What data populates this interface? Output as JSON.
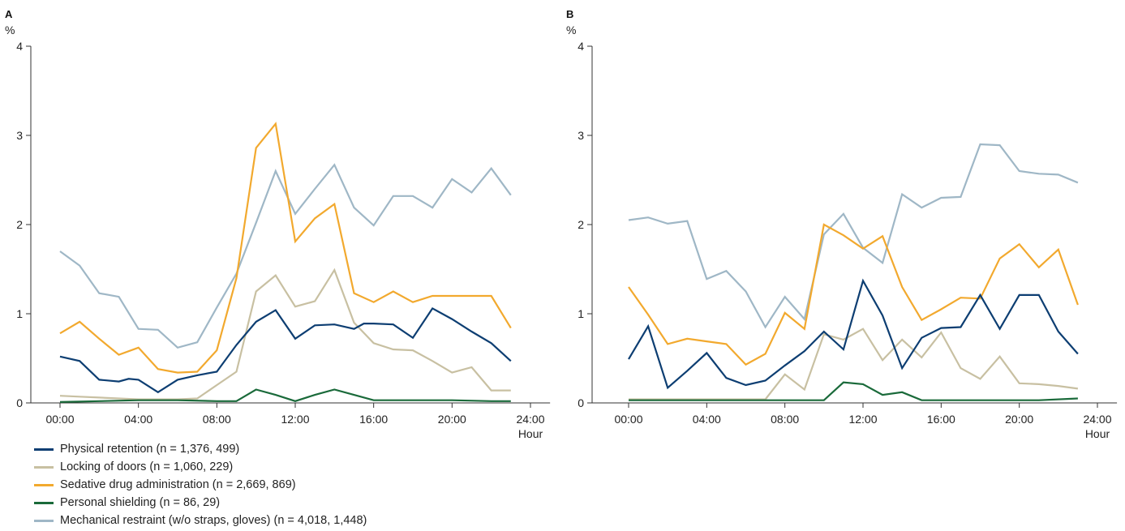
{
  "chart_data": [
    {
      "type": "line",
      "panel_label": "A",
      "ylabel": "%",
      "xlabel": "Hour",
      "ylim": [
        0,
        4
      ],
      "xlim": [
        -2,
        25
      ],
      "y_ticks": [
        "0",
        "1",
        "2",
        "3",
        "4"
      ],
      "x_ticks": [
        "00:00",
        "04:00",
        "08:00",
        "12:00",
        "16:00",
        "20:00",
        "24:00"
      ],
      "series": [
        {
          "name": "Mechanical restraint (w/o straps, gloves) (n = 4,018, 1,448)",
          "color": "#9fb7c6",
          "points": [
            [
              0,
              1.7
            ],
            [
              1,
              1.54
            ],
            [
              2,
              1.23
            ],
            [
              3,
              1.19
            ],
            [
              4,
              0.83
            ],
            [
              5,
              0.82
            ],
            [
              6,
              0.62
            ],
            [
              7,
              0.68
            ],
            [
              8,
              1.07
            ],
            [
              9,
              1.45
            ],
            [
              10,
              2.02
            ],
            [
              11,
              2.6
            ],
            [
              12,
              2.12
            ],
            [
              13,
              2.4
            ],
            [
              14,
              2.67
            ],
            [
              15,
              2.19
            ],
            [
              16,
              1.99
            ],
            [
              17,
              2.32
            ],
            [
              18,
              2.32
            ],
            [
              19,
              2.19
            ],
            [
              20,
              2.51
            ],
            [
              21,
              2.36
            ],
            [
              22,
              2.63
            ],
            [
              23,
              2.33
            ]
          ]
        },
        {
          "name": "Locking of doors (n = 1,060, 229)",
          "color": "#c8c0a2",
          "points": [
            [
              0,
              0.08
            ],
            [
              1,
              0.07
            ],
            [
              2,
              0.06
            ],
            [
              3,
              0.05
            ],
            [
              4,
              0.04
            ],
            [
              5,
              0.04
            ],
            [
              6,
              0.04
            ],
            [
              7,
              0.05
            ],
            [
              8,
              0.2
            ],
            [
              9,
              0.35
            ],
            [
              10,
              1.25
            ],
            [
              11,
              1.43
            ],
            [
              12,
              1.08
            ],
            [
              13,
              1.14
            ],
            [
              14,
              1.49
            ],
            [
              15,
              0.9
            ],
            [
              16,
              0.67
            ],
            [
              17,
              0.6
            ],
            [
              18,
              0.59
            ],
            [
              19,
              0.47
            ],
            [
              20,
              0.34
            ],
            [
              21,
              0.4
            ],
            [
              22,
              0.14
            ],
            [
              23,
              0.14
            ]
          ]
        },
        {
          "name": "Sedative drug administration (n = 2,669, 869)",
          "color": "#f2a92e",
          "points": [
            [
              0,
              0.78
            ],
            [
              1,
              0.91
            ],
            [
              2,
              0.72
            ],
            [
              3,
              0.54
            ],
            [
              4,
              0.62
            ],
            [
              5,
              0.38
            ],
            [
              6,
              0.34
            ],
            [
              7,
              0.35
            ],
            [
              8,
              0.59
            ],
            [
              9,
              1.4
            ],
            [
              10,
              2.86
            ],
            [
              11,
              3.13
            ],
            [
              12,
              1.81
            ],
            [
              13,
              2.07
            ],
            [
              14,
              2.23
            ],
            [
              15,
              1.23
            ],
            [
              16,
              1.13
            ],
            [
              17,
              1.25
            ],
            [
              18,
              1.13
            ],
            [
              19,
              1.2
            ],
            [
              20,
              1.2
            ],
            [
              21,
              1.2
            ],
            [
              22,
              1.2
            ],
            [
              23,
              0.84
            ]
          ]
        },
        {
          "name": "Physical retention (n = 1,376, 499)",
          "color": "#0d3e72",
          "points": [
            [
              0,
              0.52
            ],
            [
              1,
              0.47
            ],
            [
              2,
              0.26
            ],
            [
              3,
              0.24
            ],
            [
              3.5,
              0.27
            ],
            [
              4,
              0.26
            ],
            [
              5,
              0.12
            ],
            [
              6,
              0.26
            ],
            [
              7,
              0.31
            ],
            [
              8,
              0.35
            ],
            [
              9,
              0.65
            ],
            [
              10,
              0.91
            ],
            [
              11,
              1.04
            ],
            [
              12,
              0.72
            ],
            [
              13,
              0.87
            ],
            [
              14,
              0.88
            ],
            [
              15,
              0.83
            ],
            [
              15.5,
              0.89
            ],
            [
              16,
              0.89
            ],
            [
              17,
              0.88
            ],
            [
              18,
              0.73
            ],
            [
              19,
              1.06
            ],
            [
              20,
              0.94
            ],
            [
              21,
              0.8
            ],
            [
              22,
              0.67
            ],
            [
              23,
              0.47
            ]
          ]
        },
        {
          "name": "Personal shielding (n = 86, 29)",
          "color": "#1a6a3a",
          "points": [
            [
              0,
              0.01
            ],
            [
              2,
              0.02
            ],
            [
              4,
              0.03
            ],
            [
              6,
              0.03
            ],
            [
              8,
              0.02
            ],
            [
              9,
              0.02
            ],
            [
              10,
              0.15
            ],
            [
              11,
              0.09
            ],
            [
              12,
              0.02
            ],
            [
              13,
              0.09
            ],
            [
              14,
              0.15
            ],
            [
              15,
              0.09
            ],
            [
              16,
              0.03
            ],
            [
              18,
              0.03
            ],
            [
              20,
              0.03
            ],
            [
              22,
              0.02
            ],
            [
              23,
              0.02
            ]
          ]
        }
      ]
    },
    {
      "type": "line",
      "panel_label": "B",
      "ylabel": "%",
      "xlabel": "Hour",
      "ylim": [
        0,
        4
      ],
      "xlim": [
        -2,
        25
      ],
      "y_ticks": [
        "0",
        "1",
        "2",
        "3",
        "4"
      ],
      "x_ticks": [
        "00:00",
        "04:00",
        "08:00",
        "12:00",
        "16:00",
        "20:00",
        "24:00"
      ],
      "series": [
        {
          "name": "Mechanical restraint (w/o straps, gloves) (n = 4,018, 1,448)",
          "color": "#9fb7c6",
          "points": [
            [
              0,
              2.05
            ],
            [
              1,
              2.08
            ],
            [
              2,
              2.01
            ],
            [
              3,
              2.04
            ],
            [
              4,
              1.39
            ],
            [
              5,
              1.48
            ],
            [
              6,
              1.25
            ],
            [
              7,
              0.85
            ],
            [
              8,
              1.19
            ],
            [
              9,
              0.94
            ],
            [
              10,
              1.89
            ],
            [
              11,
              2.12
            ],
            [
              12,
              1.74
            ],
            [
              13,
              1.57
            ],
            [
              14,
              2.34
            ],
            [
              15,
              2.19
            ],
            [
              16,
              2.3
            ],
            [
              17,
              2.31
            ],
            [
              18,
              2.9
            ],
            [
              19,
              2.89
            ],
            [
              20,
              2.6
            ],
            [
              21,
              2.57
            ],
            [
              22,
              2.56
            ],
            [
              23,
              2.47
            ]
          ]
        },
        {
          "name": "Locking of doors (n = 1,060, 229)",
          "color": "#c8c0a2",
          "points": [
            [
              0,
              0.04
            ],
            [
              2,
              0.04
            ],
            [
              4,
              0.04
            ],
            [
              6,
              0.04
            ],
            [
              7,
              0.04
            ],
            [
              8,
              0.32
            ],
            [
              9,
              0.15
            ],
            [
              10,
              0.77
            ],
            [
              11,
              0.71
            ],
            [
              12,
              0.83
            ],
            [
              13,
              0.48
            ],
            [
              14,
              0.71
            ],
            [
              15,
              0.51
            ],
            [
              16,
              0.79
            ],
            [
              17,
              0.39
            ],
            [
              18,
              0.27
            ],
            [
              19,
              0.52
            ],
            [
              20,
              0.22
            ],
            [
              21,
              0.21
            ],
            [
              22,
              0.19
            ],
            [
              23,
              0.16
            ]
          ]
        },
        {
          "name": "Sedative drug administration (n = 2,669, 869)",
          "color": "#f2a92e",
          "points": [
            [
              0,
              1.3
            ],
            [
              1,
              0.99
            ],
            [
              2,
              0.66
            ],
            [
              3,
              0.72
            ],
            [
              4,
              0.69
            ],
            [
              5,
              0.66
            ],
            [
              6,
              0.43
            ],
            [
              7,
              0.55
            ],
            [
              8,
              1.01
            ],
            [
              9,
              0.83
            ],
            [
              10,
              2.0
            ],
            [
              11,
              1.88
            ],
            [
              12,
              1.73
            ],
            [
              13,
              1.87
            ],
            [
              14,
              1.3
            ],
            [
              15,
              0.93
            ],
            [
              16,
              1.05
            ],
            [
              17,
              1.18
            ],
            [
              18,
              1.17
            ],
            [
              19,
              1.62
            ],
            [
              20,
              1.78
            ],
            [
              21,
              1.52
            ],
            [
              22,
              1.72
            ],
            [
              23,
              1.1
            ]
          ]
        },
        {
          "name": "Physical retention (n = 1,376, 499)",
          "color": "#0d3e72",
          "points": [
            [
              0,
              0.49
            ],
            [
              1,
              0.86
            ],
            [
              2,
              0.17
            ],
            [
              3,
              0.36
            ],
            [
              4,
              0.56
            ],
            [
              5,
              0.28
            ],
            [
              6,
              0.2
            ],
            [
              7,
              0.25
            ],
            [
              8,
              0.42
            ],
            [
              9,
              0.58
            ],
            [
              10,
              0.8
            ],
            [
              11,
              0.6
            ],
            [
              12,
              1.37
            ],
            [
              13,
              0.98
            ],
            [
              14,
              0.39
            ],
            [
              15,
              0.73
            ],
            [
              16,
              0.84
            ],
            [
              17,
              0.85
            ],
            [
              18,
              1.21
            ],
            [
              19,
              0.83
            ],
            [
              20,
              1.21
            ],
            [
              21,
              1.21
            ],
            [
              22,
              0.8
            ],
            [
              23,
              0.55
            ]
          ]
        },
        {
          "name": "Personal shielding (n = 86, 29)",
          "color": "#1a6a3a",
          "points": [
            [
              0,
              0.03
            ],
            [
              2,
              0.03
            ],
            [
              4,
              0.03
            ],
            [
              6,
              0.03
            ],
            [
              8,
              0.03
            ],
            [
              10,
              0.03
            ],
            [
              11,
              0.23
            ],
            [
              12,
              0.21
            ],
            [
              13,
              0.09
            ],
            [
              14,
              0.12
            ],
            [
              15,
              0.03
            ],
            [
              17,
              0.03
            ],
            [
              19,
              0.03
            ],
            [
              21,
              0.03
            ],
            [
              23,
              0.05
            ]
          ]
        }
      ]
    }
  ],
  "legend": [
    {
      "label": "Physical retention (n = 1,376, 499)",
      "color": "#0d3e72"
    },
    {
      "label": "Locking of doors (n = 1,060, 229)",
      "color": "#c8c0a2"
    },
    {
      "label": "Sedative drug administration (n = 2,669, 869)",
      "color": "#f2a92e"
    },
    {
      "label": "Personal shielding (n = 86, 29)",
      "color": "#1a6a3a"
    },
    {
      "label": "Mechanical restraint (w/o straps, gloves) (n = 4,018, 1,448)",
      "color": "#9fb7c6"
    }
  ]
}
